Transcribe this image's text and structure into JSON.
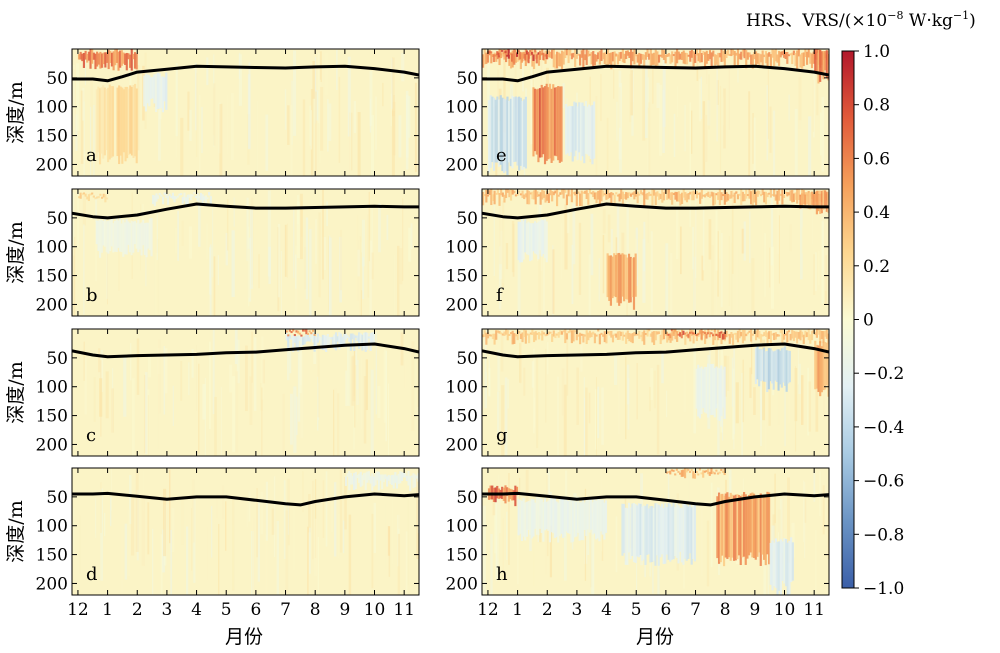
{
  "chart_data": {
    "type": "heatmap",
    "title": "",
    "colorbar": {
      "title_main": "HRS、VRS/(×10",
      "title_exp": "−8",
      "title_rest": " W·kg",
      "title_exp2": "−1",
      "title_close": ")",
      "range": [
        -1.0,
        1.0
      ],
      "tick_values": [
        1.0,
        0.8,
        0.6,
        0.4,
        0.2,
        0,
        -0.2,
        -0.4,
        -0.6,
        -0.8,
        -1.0
      ],
      "tick_labels": [
        "1.0",
        "0.8",
        "0.6",
        "0.4",
        "0.2",
        "0",
        "−0.2",
        "−0.4",
        "−0.6",
        "−0.8",
        "−1.0"
      ],
      "colors": [
        "#3b5fa8",
        "#6b94c4",
        "#a9cbe3",
        "#e3f0f4",
        "#fbfbd4",
        "#fdd690",
        "#f5a05b",
        "#e15a3a",
        "#b2182b"
      ]
    },
    "xlabel": "月份",
    "ylabel": "深度/m",
    "x_range": [
      11.8,
      23.5
    ],
    "x_ticks": [
      12,
      13,
      14,
      15,
      16,
      17,
      18,
      19,
      20,
      21,
      22,
      23
    ],
    "x_tick_labels": [
      "12",
      "1",
      "2",
      "3",
      "4",
      "5",
      "6",
      "7",
      "8",
      "9",
      "10",
      "11"
    ],
    "y_range": [
      0,
      220
    ],
    "y_inverted": true,
    "y_ticks": [
      50,
      100,
      150,
      200
    ],
    "y_tick_labels": [
      "50",
      "100",
      "150",
      "200"
    ],
    "panels": [
      {
        "label": "a",
        "column": 0,
        "row": 0,
        "mld": [
          [
            11.8,
            52
          ],
          [
            12.5,
            52
          ],
          [
            13,
            55
          ],
          [
            13.5,
            48
          ],
          [
            14,
            40
          ],
          [
            15,
            35
          ],
          [
            16,
            30
          ],
          [
            17,
            31
          ],
          [
            18,
            32
          ],
          [
            19,
            33
          ],
          [
            20,
            31
          ],
          [
            21,
            30
          ],
          [
            22,
            34
          ],
          [
            23,
            40
          ],
          [
            23.5,
            45
          ]
        ],
        "blobs": [
          [
            12,
            14,
            0,
            40,
            0.7
          ],
          [
            13.3,
            14,
            60,
            200,
            0.25
          ],
          [
            14.2,
            15,
            40,
            110,
            -0.25
          ],
          [
            12.6,
            13.2,
            60,
            200,
            0.2
          ]
        ]
      },
      {
        "label": "b",
        "column": 0,
        "row": 1,
        "mld": [
          [
            11.8,
            42
          ],
          [
            12.5,
            48
          ],
          [
            13,
            50
          ],
          [
            14,
            45
          ],
          [
            15,
            35
          ],
          [
            16,
            26
          ],
          [
            17,
            30
          ],
          [
            18,
            33
          ],
          [
            19,
            33
          ],
          [
            20,
            32
          ],
          [
            21,
            31
          ],
          [
            22,
            30
          ],
          [
            23,
            31
          ],
          [
            23.5,
            31
          ]
        ],
        "blobs": [
          [
            12.6,
            14.5,
            50,
            120,
            -0.15
          ],
          [
            14.5,
            16.5,
            5,
            30,
            -0.2
          ],
          [
            12,
            13,
            5,
            25,
            0.3
          ]
        ]
      },
      {
        "label": "c",
        "column": 0,
        "row": 2,
        "mld": [
          [
            11.8,
            38
          ],
          [
            12.5,
            45
          ],
          [
            13,
            48
          ],
          [
            14,
            46
          ],
          [
            15,
            45
          ],
          [
            16,
            44
          ],
          [
            17,
            41
          ],
          [
            18,
            40
          ],
          [
            19,
            36
          ],
          [
            20,
            32
          ],
          [
            21,
            28
          ],
          [
            22,
            26
          ],
          [
            23,
            34
          ],
          [
            23.5,
            40
          ]
        ],
        "blobs": [
          [
            19,
            22,
            5,
            40,
            -0.3
          ],
          [
            19,
            20,
            0,
            10,
            0.7
          ]
        ]
      },
      {
        "label": "d",
        "column": 0,
        "row": 3,
        "mld": [
          [
            11.8,
            45
          ],
          [
            12.5,
            45
          ],
          [
            13,
            44
          ],
          [
            14,
            49
          ],
          [
            15,
            54
          ],
          [
            16,
            50
          ],
          [
            17,
            50
          ],
          [
            18,
            56
          ],
          [
            19,
            62
          ],
          [
            19.5,
            64
          ],
          [
            20,
            58
          ],
          [
            21,
            50
          ],
          [
            22,
            45
          ],
          [
            23,
            48
          ],
          [
            23.5,
            46
          ]
        ],
        "blobs": [
          [
            21,
            23.5,
            5,
            40,
            -0.2
          ]
        ]
      },
      {
        "label": "e",
        "column": 1,
        "row": 0,
        "mld": [
          [
            11.8,
            52
          ],
          [
            12.5,
            52
          ],
          [
            13,
            55
          ],
          [
            13.5,
            48
          ],
          [
            14,
            40
          ],
          [
            15,
            35
          ],
          [
            16,
            30
          ],
          [
            17,
            31
          ],
          [
            18,
            32
          ],
          [
            19,
            33
          ],
          [
            20,
            31
          ],
          [
            21,
            30
          ],
          [
            22,
            34
          ],
          [
            23,
            40
          ],
          [
            23.5,
            45
          ]
        ],
        "blobs": [
          [
            11.8,
            23.5,
            0,
            35,
            0.55
          ],
          [
            12,
            14,
            0,
            25,
            0.85
          ],
          [
            13.5,
            14.5,
            60,
            200,
            0.75
          ],
          [
            12,
            13.3,
            80,
            220,
            -0.4
          ],
          [
            14.6,
            15.6,
            90,
            200,
            -0.3
          ],
          [
            23,
            23.5,
            0,
            60,
            0.7
          ]
        ]
      },
      {
        "label": "f",
        "column": 1,
        "row": 1,
        "mld": [
          [
            11.8,
            42
          ],
          [
            12.5,
            48
          ],
          [
            13,
            50
          ],
          [
            14,
            45
          ],
          [
            15,
            35
          ],
          [
            16,
            26
          ],
          [
            17,
            30
          ],
          [
            18,
            33
          ],
          [
            19,
            33
          ],
          [
            20,
            32
          ],
          [
            21,
            31
          ],
          [
            22,
            30
          ],
          [
            23,
            31
          ],
          [
            23.5,
            31
          ]
        ],
        "blobs": [
          [
            11.8,
            23.5,
            0,
            30,
            0.45
          ],
          [
            16,
            17,
            110,
            210,
            0.55
          ],
          [
            13,
            14,
            50,
            130,
            -0.25
          ],
          [
            22.5,
            23.5,
            0,
            50,
            0.5
          ]
        ]
      },
      {
        "label": "g",
        "column": 1,
        "row": 2,
        "mld": [
          [
            11.8,
            38
          ],
          [
            12.5,
            45
          ],
          [
            13,
            48
          ],
          [
            14,
            46
          ],
          [
            15,
            45
          ],
          [
            16,
            44
          ],
          [
            17,
            41
          ],
          [
            18,
            40
          ],
          [
            19,
            36
          ],
          [
            20,
            32
          ],
          [
            21,
            28
          ],
          [
            22,
            26
          ],
          [
            23,
            34
          ],
          [
            23.5,
            40
          ]
        ],
        "blobs": [
          [
            11.8,
            23.5,
            0,
            28,
            0.4
          ],
          [
            18,
            20,
            0,
            20,
            0.75
          ],
          [
            21,
            22.2,
            30,
            110,
            -0.45
          ],
          [
            19,
            20,
            60,
            160,
            -0.2
          ],
          [
            23,
            23.5,
            20,
            120,
            0.5
          ]
        ]
      },
      {
        "label": "h",
        "column": 1,
        "row": 3,
        "mld": [
          [
            11.8,
            45
          ],
          [
            12.5,
            45
          ],
          [
            13,
            44
          ],
          [
            14,
            49
          ],
          [
            15,
            54
          ],
          [
            16,
            50
          ],
          [
            17,
            50
          ],
          [
            18,
            56
          ],
          [
            19,
            62
          ],
          [
            19.5,
            64
          ],
          [
            20,
            58
          ],
          [
            21,
            50
          ],
          [
            22,
            45
          ],
          [
            23,
            48
          ],
          [
            23.5,
            46
          ]
        ],
        "blobs": [
          [
            12,
            13,
            30,
            70,
            0.8
          ],
          [
            13,
            16,
            50,
            130,
            -0.2
          ],
          [
            16.5,
            19,
            60,
            170,
            -0.3
          ],
          [
            19.7,
            21.5,
            40,
            170,
            0.55
          ],
          [
            18,
            20,
            0,
            20,
            0.45
          ],
          [
            21.5,
            22.3,
            120,
            220,
            -0.3
          ]
        ]
      }
    ]
  }
}
